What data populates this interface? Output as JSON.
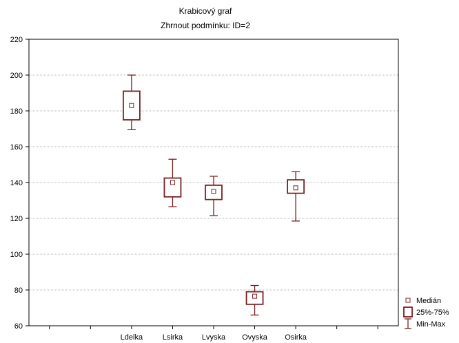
{
  "chart_data": {
    "type": "boxplot",
    "title": "Krabicový graf",
    "subtitle": "Zhrnout podmínku: ID=2",
    "xlabel": "",
    "ylabel": "",
    "ylim": [
      60,
      220
    ],
    "yticks": [
      60,
      80,
      100,
      120,
      140,
      160,
      180,
      200,
      220
    ],
    "grid": true,
    "legend_position": "bottom-right",
    "categories": [
      "",
      "",
      "Ldelka",
      "Lsirka",
      "Lvyska",
      "Ovyska",
      "Osirka",
      "",
      ""
    ],
    "series": [
      {
        "category": "Ldelka",
        "min": 169.5,
        "q1": 175,
        "median": 183,
        "q3": 191,
        "max": 200
      },
      {
        "category": "Lsirka",
        "min": 126.5,
        "q1": 132,
        "median": 140,
        "q3": 142.5,
        "max": 153
      },
      {
        "category": "Lvyska",
        "min": 121.5,
        "q1": 130.5,
        "median": 135,
        "q3": 138.5,
        "max": 143.5
      },
      {
        "category": "Ovyska",
        "min": 66,
        "q1": 72,
        "median": 76.5,
        "q3": 79,
        "max": 82.5
      },
      {
        "category": "Osirka",
        "min": 118.5,
        "q1": 134,
        "median": 137,
        "q3": 141.5,
        "max": 146
      }
    ],
    "legend": [
      {
        "label": "Medián",
        "symbol": "median"
      },
      {
        "label": "25%-75%",
        "symbol": "box"
      },
      {
        "label": "Min-Max",
        "symbol": "whisker"
      }
    ],
    "colors": {
      "box": "#7a1f1f",
      "grid": "#a0a0a0",
      "frame": "#000000"
    }
  }
}
